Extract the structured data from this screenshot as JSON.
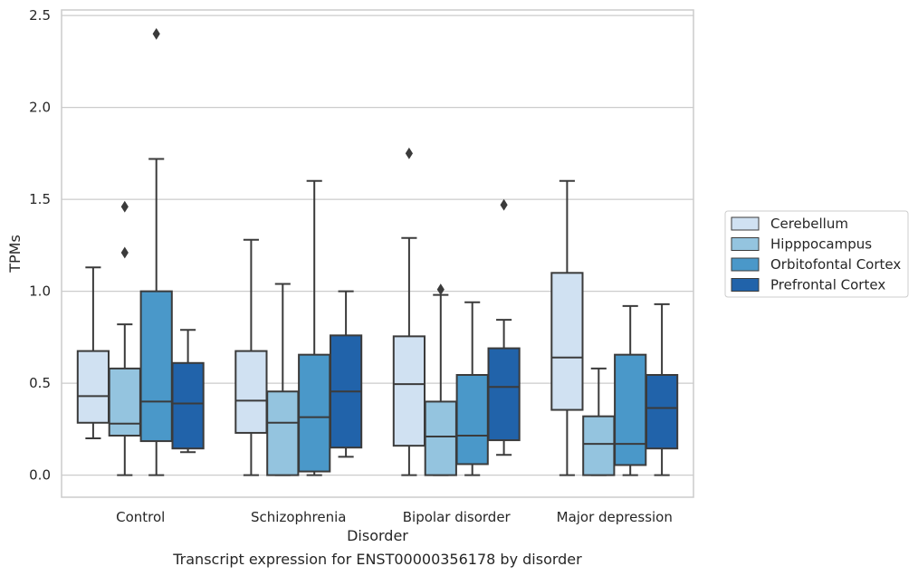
{
  "chart_data": {
    "type": "box",
    "title": "Transcript expression for ENST00000356178 by disorder",
    "xlabel": "Disorder",
    "ylabel": "TPMs",
    "ylim": [
      -0.12,
      2.53
    ],
    "yticks": [
      0.0,
      0.5,
      1.0,
      1.5,
      2.0,
      2.5
    ],
    "ytick_labels": [
      "0.0",
      "0.5",
      "1.0",
      "1.5",
      "2.0",
      "2.5"
    ],
    "grid": "horizontal",
    "legend_position": "right",
    "categories": [
      "Control",
      "Schizophrenia",
      "Bipolar disorder",
      "Major depression"
    ],
    "series": [
      {
        "name": "Cerebellum",
        "color": "#d0e1f2",
        "boxes": [
          {
            "whisker_low": 0.2,
            "q1": 0.285,
            "median": 0.43,
            "q3": 0.675,
            "whisker_high": 1.13,
            "outliers": []
          },
          {
            "whisker_low": 0.0,
            "q1": 0.23,
            "median": 0.405,
            "q3": 0.675,
            "whisker_high": 1.28,
            "outliers": []
          },
          {
            "whisker_low": 0.0,
            "q1": 0.16,
            "median": 0.495,
            "q3": 0.755,
            "whisker_high": 1.29,
            "outliers": [
              1.75
            ]
          },
          {
            "whisker_low": 0.0,
            "q1": 0.355,
            "median": 0.64,
            "q3": 1.1,
            "whisker_high": 1.6,
            "outliers": []
          }
        ]
      },
      {
        "name": "Hipppocampus",
        "color": "#94c4df",
        "boxes": [
          {
            "whisker_low": 0.0,
            "q1": 0.215,
            "median": 0.28,
            "q3": 0.58,
            "whisker_high": 0.82,
            "outliers": [
              1.21,
              1.46
            ]
          },
          {
            "whisker_low": 0.0,
            "q1": 0.0,
            "median": 0.285,
            "q3": 0.455,
            "whisker_high": 1.04,
            "outliers": []
          },
          {
            "whisker_low": 0.0,
            "q1": 0.0,
            "median": 0.21,
            "q3": 0.4,
            "whisker_high": 0.98,
            "outliers": [
              1.01
            ]
          },
          {
            "whisker_low": 0.0,
            "q1": 0.0,
            "median": 0.17,
            "q3": 0.32,
            "whisker_high": 0.58,
            "outliers": []
          }
        ]
      },
      {
        "name": "Orbitofontal Cortex",
        "color": "#4a98c9",
        "boxes": [
          {
            "whisker_low": 0.0,
            "q1": 0.185,
            "median": 0.4,
            "q3": 1.0,
            "whisker_high": 1.72,
            "outliers": [
              2.4
            ]
          },
          {
            "whisker_low": 0.0,
            "q1": 0.02,
            "median": 0.315,
            "q3": 0.655,
            "whisker_high": 1.6,
            "outliers": []
          },
          {
            "whisker_low": 0.0,
            "q1": 0.06,
            "median": 0.215,
            "q3": 0.545,
            "whisker_high": 0.94,
            "outliers": []
          },
          {
            "whisker_low": 0.0,
            "q1": 0.055,
            "median": 0.17,
            "q3": 0.655,
            "whisker_high": 0.92,
            "outliers": []
          }
        ]
      },
      {
        "name": "Prefrontal Cortex",
        "color": "#2163aa",
        "boxes": [
          {
            "whisker_low": 0.125,
            "q1": 0.145,
            "median": 0.39,
            "q3": 0.61,
            "whisker_high": 0.79,
            "outliers": []
          },
          {
            "whisker_low": 0.1,
            "q1": 0.15,
            "median": 0.455,
            "q3": 0.76,
            "whisker_high": 1.0,
            "outliers": []
          },
          {
            "whisker_low": 0.11,
            "q1": 0.19,
            "median": 0.48,
            "q3": 0.69,
            "whisker_high": 0.845,
            "outliers": [
              1.47
            ]
          },
          {
            "whisker_low": 0.0,
            "q1": 0.145,
            "median": 0.365,
            "q3": 0.545,
            "whisker_high": 0.93,
            "outliers": []
          }
        ]
      }
    ]
  }
}
